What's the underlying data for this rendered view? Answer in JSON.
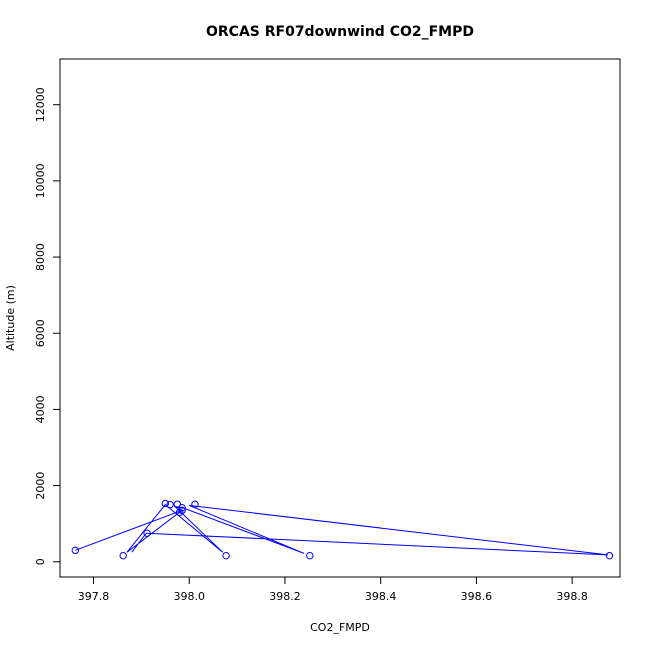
{
  "chart_data": {
    "type": "scatter",
    "title": "ORCAS RF07downwind CO2_FMPD",
    "xlabel": "CO2_FMPD",
    "ylabel": "Altitude (m)",
    "xlim": [
      397.73,
      398.9
    ],
    "ylim": [
      -400,
      13200
    ],
    "x_ticks": [
      397.8,
      398.0,
      398.2,
      398.4,
      398.6,
      398.8
    ],
    "x_tick_labels": [
      "397.8",
      "398.0",
      "398.2",
      "398.4",
      "398.6",
      "398.8"
    ],
    "y_ticks": [
      0,
      2000,
      4000,
      6000,
      8000,
      10000,
      12000
    ],
    "y_tick_labels": [
      "0",
      "2000",
      "4000",
      "6000",
      "8000",
      "10000",
      "12000"
    ],
    "grid": false,
    "series_color": "#0000ff",
    "points": [
      {
        "x": 397.762,
        "y": 300
      },
      {
        "x": 397.985,
        "y": 1350
      },
      {
        "x": 397.862,
        "y": 160
      },
      {
        "x": 397.98,
        "y": 1300
      },
      {
        "x": 397.95,
        "y": 1530
      },
      {
        "x": 398.077,
        "y": 160
      },
      {
        "x": 397.975,
        "y": 1510
      },
      {
        "x": 397.96,
        "y": 1500
      },
      {
        "x": 397.985,
        "y": 1420
      },
      {
        "x": 398.252,
        "y": 160
      },
      {
        "x": 398.012,
        "y": 1510
      },
      {
        "x": 398.878,
        "y": 160
      },
      {
        "x": 397.912,
        "y": 750
      }
    ],
    "path": [
      {
        "x": 397.762,
        "y": 300
      },
      {
        "x": 397.985,
        "y": 1350
      },
      {
        "x": 397.87,
        "y": 250
      },
      {
        "x": 397.95,
        "y": 1500
      },
      {
        "x": 398.07,
        "y": 250
      },
      {
        "x": 397.97,
        "y": 1450
      },
      {
        "x": 397.99,
        "y": 1400
      },
      {
        "x": 398.24,
        "y": 220
      },
      {
        "x": 398.0,
        "y": 1480
      },
      {
        "x": 398.875,
        "y": 180
      },
      {
        "x": 397.91,
        "y": 750
      },
      {
        "x": 397.88,
        "y": 250
      }
    ]
  }
}
